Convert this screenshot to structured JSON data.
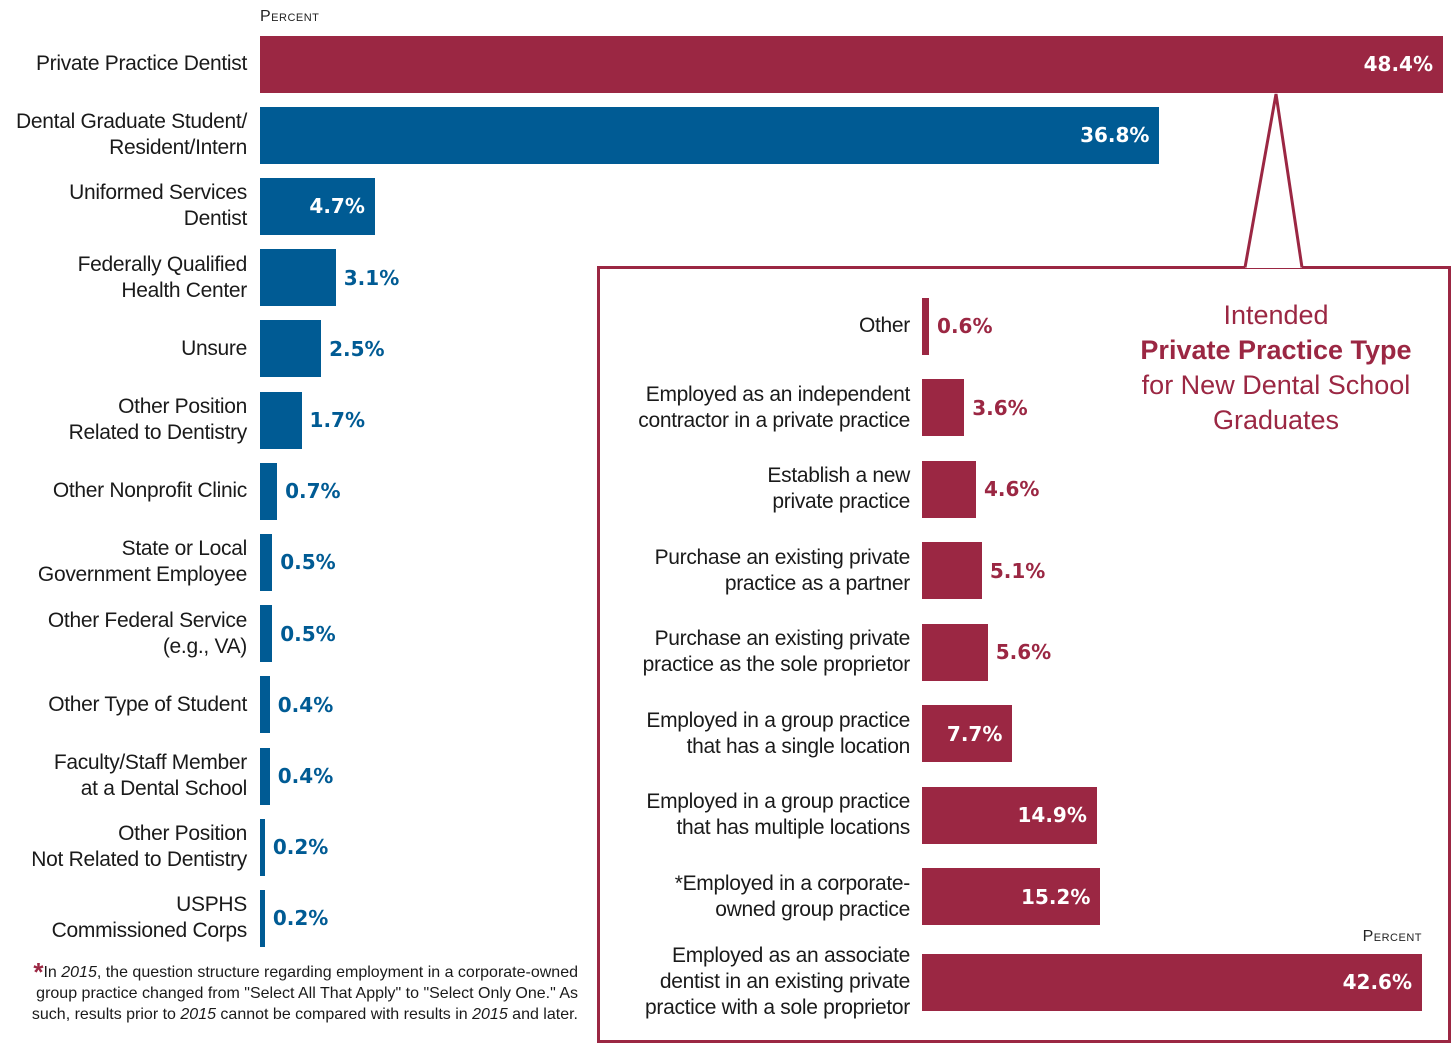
{
  "chart_data": [
    {
      "type": "bar",
      "orientation": "horizontal",
      "value_axis_label": "Percent",
      "xlim": [
        0,
        48.4
      ],
      "grid": false,
      "categories": [
        "Private Practice Dentist",
        "Dental Graduate Student/\nResident/Intern",
        "Uniformed Services\nDentist",
        "Federally Qualified\nHealth Center",
        "Unsure",
        "Other Position\nRelated to Dentistry",
        "Other Nonprofit Clinic",
        "State or Local\nGovernment Employee",
        "Other Federal Service\n(e.g., VA)",
        "Other Type of Student",
        "Faculty/Staff Member\nat a Dental School",
        "Other Position\nNot Related to Dentistry",
        "USPHS\nCommissioned Corps"
      ],
      "values": [
        48.4,
        36.8,
        4.7,
        3.1,
        2.5,
        1.7,
        0.7,
        0.5,
        0.5,
        0.4,
        0.4,
        0.2,
        0.2
      ],
      "value_labels": [
        "48.4%",
        "36.8%",
        "4.7%",
        "3.1%",
        "2.5%",
        "1.7%",
        "0.7%",
        "0.5%",
        "0.5%",
        "0.4%",
        "0.4%",
        "0.2%",
        "0.2%"
      ],
      "bar_colors": [
        "#9b2743",
        "#005b94",
        "#005b94",
        "#005b94",
        "#005b94",
        "#005b94",
        "#005b94",
        "#005b94",
        "#005b94",
        "#005b94",
        "#005b94",
        "#005b94",
        "#005b94"
      ]
    },
    {
      "type": "bar",
      "orientation": "horizontal",
      "title_parts": [
        "Intended",
        "Private Practice Type",
        "for New Dental School",
        "Graduates"
      ],
      "value_axis_label": "Percent",
      "xlim": [
        0,
        42.6
      ],
      "grid": false,
      "categories": [
        "Other",
        "Employed as an independent\ncontractor in a private practice",
        "Establish a new\nprivate practice",
        "Purchase an existing private\npractice as a partner",
        "Purchase an existing private\npractice as the sole proprietor",
        "Employed in a group practice\nthat has a single location",
        "Employed in a group practice\nthat has multiple locations",
        "*Employed in a corporate-\nowned group practice",
        "Employed as an associate\ndentist in an existing private\npractice with a sole proprietor"
      ],
      "values": [
        0.6,
        3.6,
        4.6,
        5.1,
        5.6,
        7.7,
        14.9,
        15.2,
        42.6
      ],
      "value_labels": [
        "0.6%",
        "3.6%",
        "4.6%",
        "5.1%",
        "5.6%",
        "7.7%",
        "14.9%",
        "15.2%",
        "42.6%"
      ],
      "bar_color": "#9b2743"
    }
  ],
  "footnote": {
    "star": "*",
    "parts": [
      "In ",
      "2015",
      ", the question structure regarding employment in a corporate-owned group practice changed from \"Select All That Apply\" to \"Select Only One.\" As such, results prior to ",
      "2015",
      " cannot be compared with results in ",
      "2015",
      " and later."
    ]
  },
  "colors": {
    "maroon": "#9b2743",
    "blue": "#005b94"
  }
}
